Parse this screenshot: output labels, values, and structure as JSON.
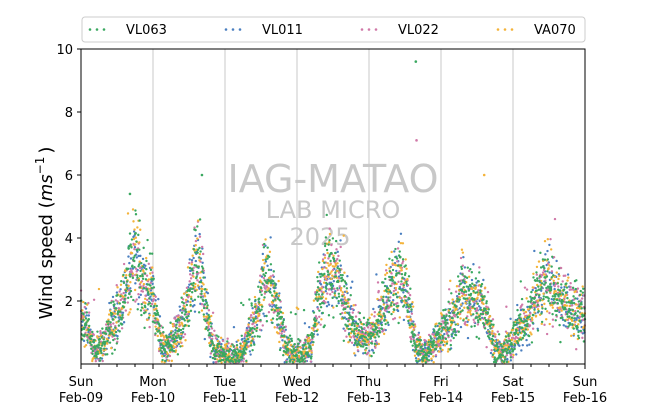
{
  "chart_data": {
    "type": "scatter",
    "title": "",
    "xlabel": "",
    "ylabel": "Wind speed (ms⁻¹)",
    "ylabel_parts": {
      "main": "Wind speed (",
      "unit_base": "ms",
      "unit_exp": "−1",
      "close": ")"
    },
    "ylim": [
      0,
      10
    ],
    "yticks": [
      2,
      4,
      6,
      8,
      10
    ],
    "xlim_days": [
      0,
      7
    ],
    "xticks": [
      {
        "day": 0,
        "line1": "Sun",
        "line2": "Feb-09"
      },
      {
        "day": 1,
        "line1": "Mon",
        "line2": "Feb-10"
      },
      {
        "day": 2,
        "line1": "Tue",
        "line2": "Feb-11"
      },
      {
        "day": 3,
        "line1": "Wed",
        "line2": "Feb-12"
      },
      {
        "day": 4,
        "line1": "Thu",
        "line2": "Feb-13"
      },
      {
        "day": 5,
        "line1": "Fri",
        "line2": "Feb-14"
      },
      {
        "day": 6,
        "line1": "Sat",
        "line2": "Feb-15"
      },
      {
        "day": 7,
        "line1": "Sun",
        "line2": "Feb-16"
      }
    ],
    "grid": "vertical at day ticks",
    "legend_position": "top, above plot",
    "watermark": {
      "line1": "IAG-MATAO",
      "line2": "LAB MICRO",
      "line3": "2025"
    },
    "series": [
      {
        "name": "VL063",
        "color": "#3aa860"
      },
      {
        "name": "VL011",
        "color": "#4a7fc0"
      },
      {
        "name": "VL022",
        "color": "#d079a8"
      },
      {
        "name": "VA070",
        "color": "#f4b33a"
      }
    ],
    "profile": {
      "day": [
        0.0,
        0.1,
        0.2,
        0.3,
        0.45,
        0.55,
        0.65,
        0.75,
        0.85,
        1.0,
        1.1,
        1.2,
        1.3,
        1.45,
        1.55,
        1.65,
        1.75,
        1.85,
        2.0,
        2.1,
        2.2,
        2.3,
        2.45,
        2.55,
        2.65,
        2.75,
        2.85,
        3.0,
        3.1,
        3.2,
        3.3,
        3.45,
        3.55,
        3.65,
        3.75,
        3.85,
        4.0,
        4.1,
        4.2,
        4.3,
        4.45,
        4.55,
        4.65,
        4.75,
        4.85,
        5.0,
        5.1,
        5.2,
        5.3,
        5.45,
        5.55,
        5.65,
        5.75,
        5.85,
        6.0,
        6.1,
        6.2,
        6.3,
        6.45,
        6.55,
        6.65,
        6.75,
        6.85,
        7.0
      ],
      "speed": [
        1.5,
        1.1,
        0.4,
        0.6,
        1.4,
        1.8,
        2.6,
        3.4,
        2.6,
        2.2,
        0.8,
        0.5,
        0.8,
        1.5,
        2.8,
        3.2,
        1.5,
        0.4,
        0.3,
        0.2,
        0.3,
        0.7,
        1.6,
        2.8,
        2.4,
        1.6,
        0.5,
        0.3,
        0.3,
        0.6,
        2.2,
        3.0,
        2.7,
        2.1,
        1.3,
        0.9,
        0.8,
        1.2,
        1.8,
        2.3,
        2.8,
        1.8,
        0.6,
        0.3,
        0.5,
        0.9,
        1.2,
        1.5,
        2.4,
        1.9,
        2.0,
        1.4,
        0.5,
        0.3,
        0.8,
        1.2,
        1.4,
        1.9,
        2.6,
        2.5,
        2.1,
        1.9,
        1.7,
        1.5
      ]
    },
    "notable_points": [
      {
        "series": "VL063",
        "day": 4.65,
        "speed": 9.6
      },
      {
        "series": "VL022",
        "day": 4.66,
        "speed": 7.1
      },
      {
        "series": "VA070",
        "day": 5.6,
        "speed": 6.0
      },
      {
        "series": "VL063",
        "day": 1.68,
        "speed": 6.0
      },
      {
        "series": "VL063",
        "day": 0.68,
        "speed": 5.4
      }
    ]
  }
}
